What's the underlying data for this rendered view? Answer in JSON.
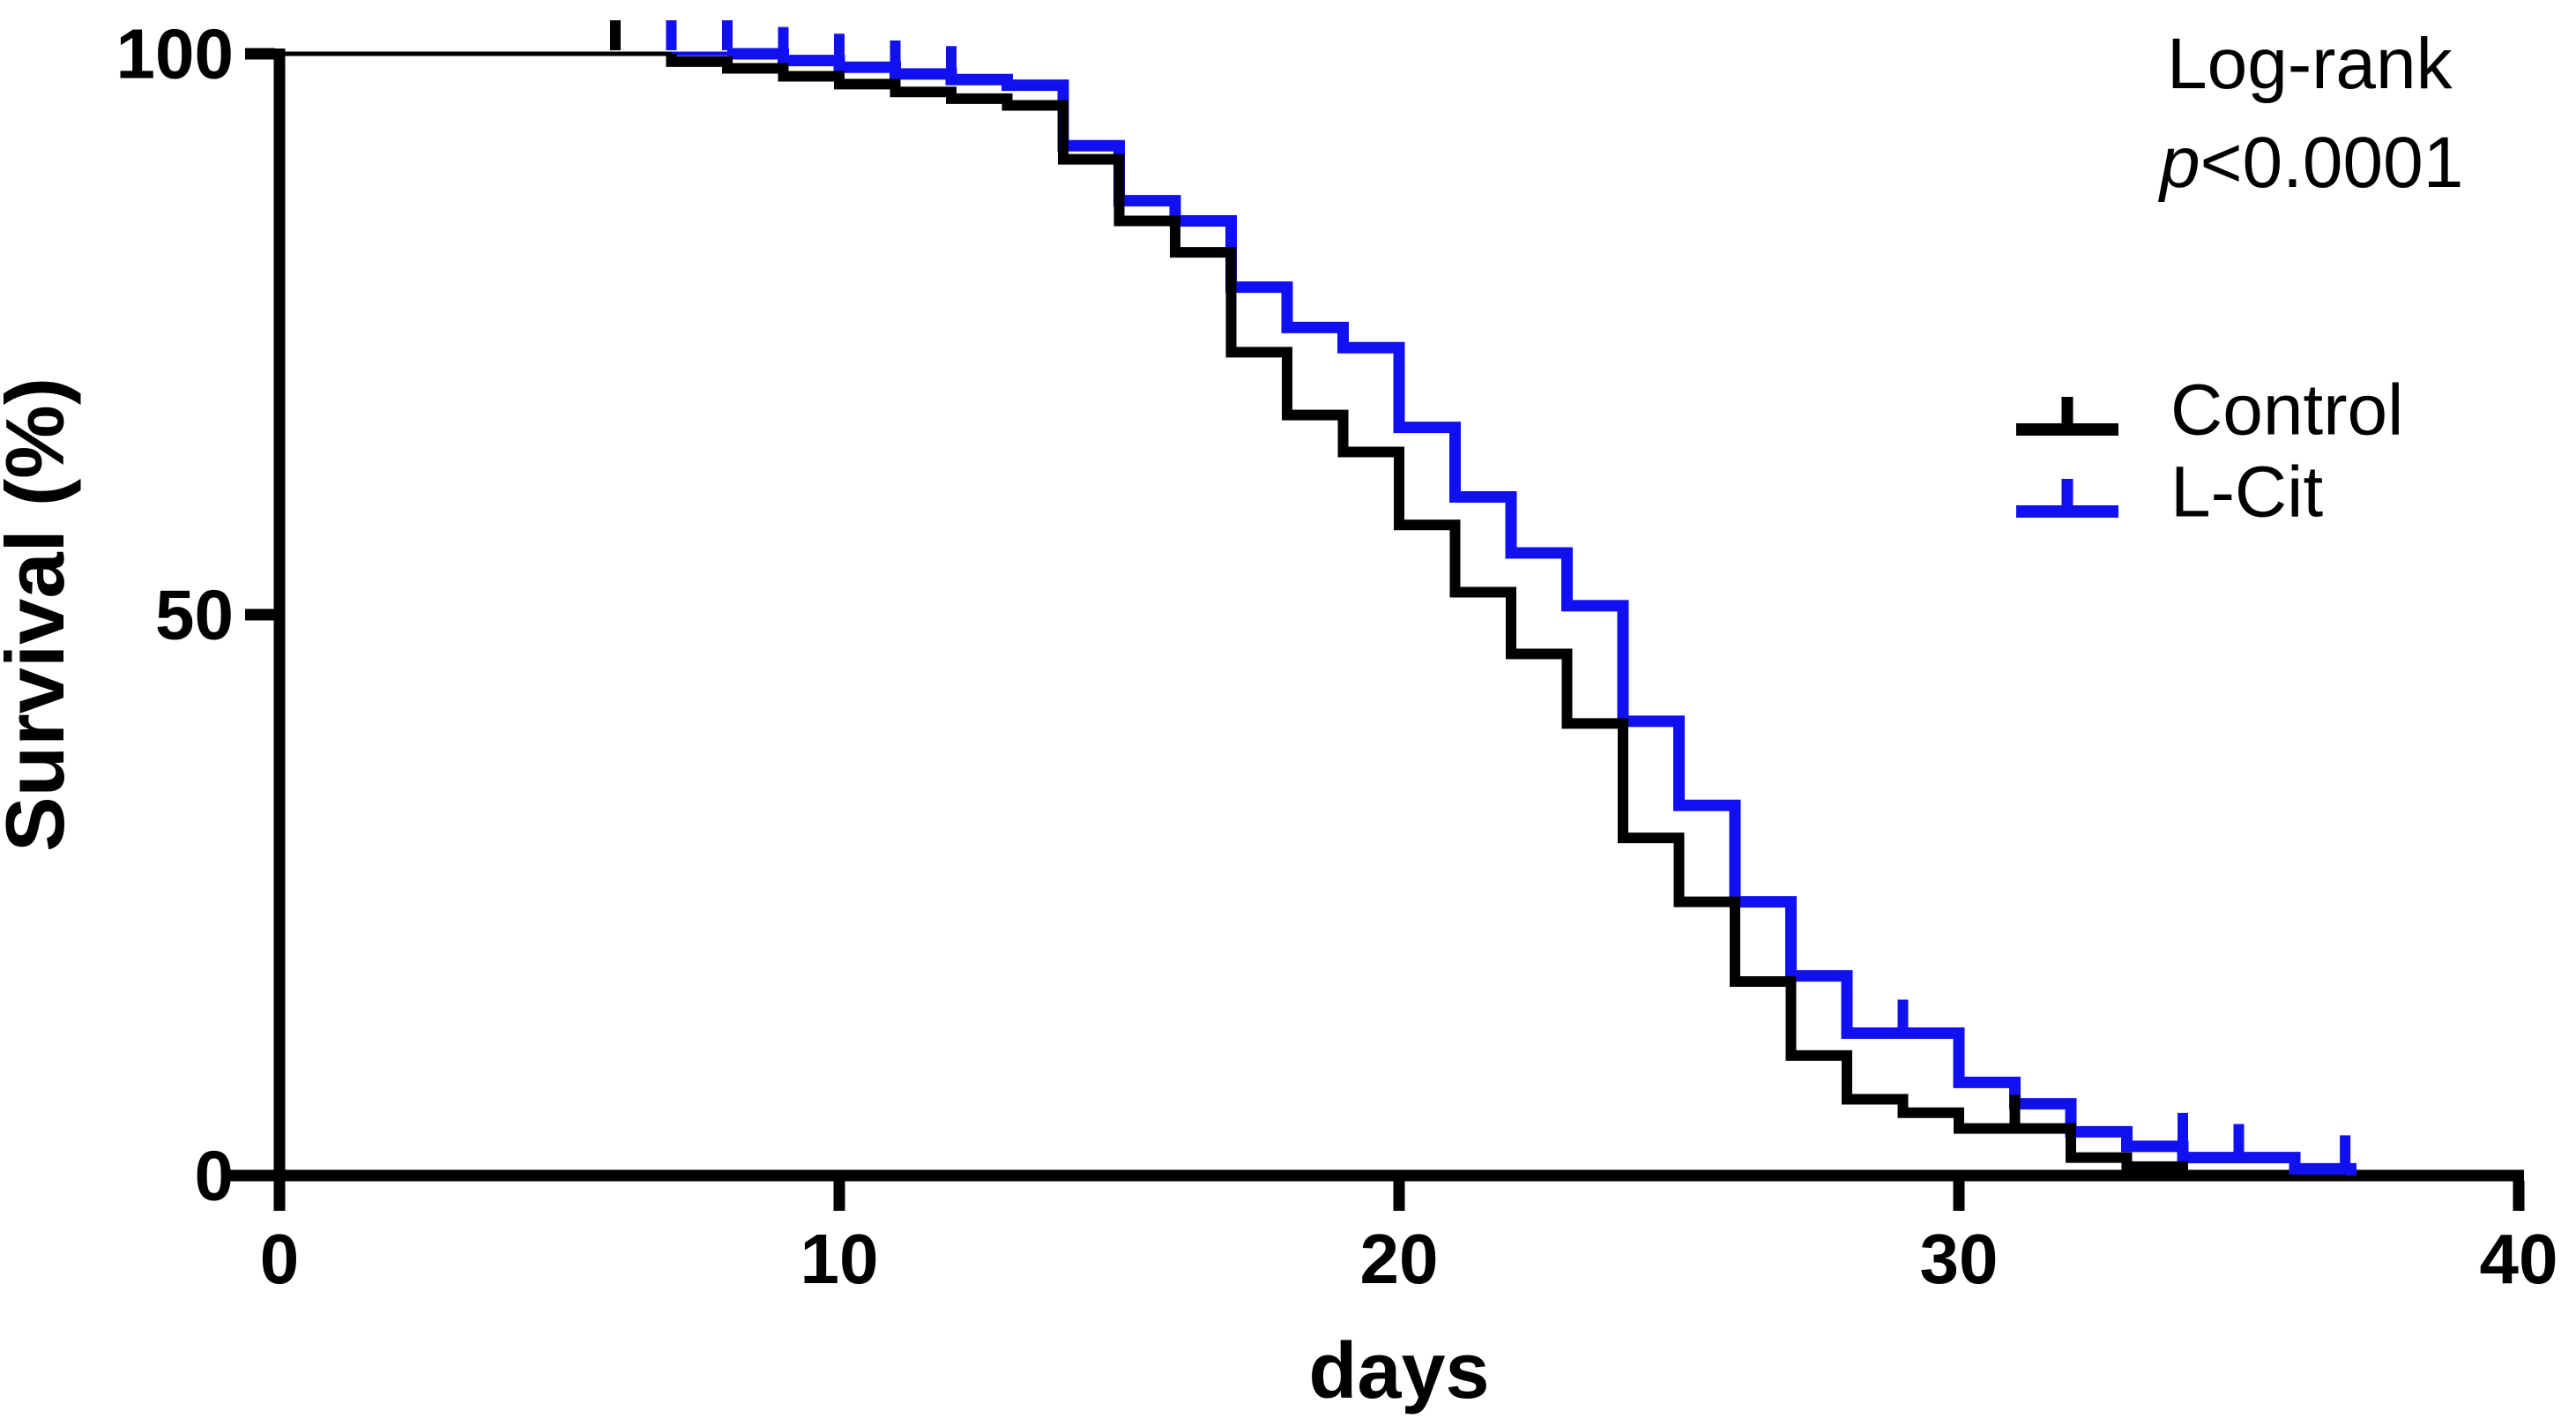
{
  "chart_data": {
    "type": "line",
    "subtype": "kaplan-meier-step-plot",
    "title": "",
    "xlabel": "days",
    "ylabel": "Survival (%)",
    "xlim": [
      0,
      40
    ],
    "ylim": [
      0,
      100
    ],
    "x_ticks": [
      0,
      10,
      20,
      30,
      40
    ],
    "y_ticks": [
      0,
      50,
      100
    ],
    "grid": false,
    "legend_position": "right-middle",
    "annotation": {
      "line1": "Log-rank",
      "p_italic": "p",
      "p_rest": "<0.0001"
    },
    "axis_color": "#000000",
    "background_color": "#ffffff",
    "series": [
      {
        "name": "Control",
        "color": "#000000",
        "line_width": 12,
        "start_level": 100,
        "thin_until_day": 7,
        "steps": [
          [
            7,
            99.3
          ],
          [
            8,
            98.7
          ],
          [
            9,
            98.0
          ],
          [
            10,
            97.3
          ],
          [
            11,
            96.6
          ],
          [
            12,
            96.0
          ],
          [
            13,
            95.4
          ],
          [
            14,
            90.6
          ],
          [
            15,
            85.1
          ],
          [
            16,
            82.3
          ],
          [
            17,
            73.4
          ],
          [
            18,
            67.8
          ],
          [
            19,
            64.5
          ],
          [
            20,
            58.0
          ],
          [
            21,
            52.0
          ],
          [
            22,
            46.5
          ],
          [
            23,
            40.3
          ],
          [
            24,
            30.1
          ],
          [
            25,
            24.4
          ],
          [
            26,
            17.3
          ],
          [
            27,
            10.7
          ],
          [
            28,
            6.8
          ],
          [
            29,
            5.6
          ],
          [
            30,
            4.2
          ],
          [
            32,
            1.6
          ],
          [
            33,
            0.8
          ],
          [
            34,
            0
          ]
        ],
        "end_day": 34,
        "censor_marks": [
          [
            6,
            100
          ],
          [
            31,
            4.2
          ]
        ]
      },
      {
        "name": "L-Cit",
        "color": "#1010F0",
        "line_width": 13,
        "start_level": 100,
        "thin_until_day": 8,
        "steps": [
          [
            9,
            99.4
          ],
          [
            10,
            98.8
          ],
          [
            11,
            98.2
          ],
          [
            12,
            97.7
          ],
          [
            13,
            97.2
          ],
          [
            14,
            91.8
          ],
          [
            15,
            86.9
          ],
          [
            16,
            85.1
          ],
          [
            17,
            79.2
          ],
          [
            18,
            75.6
          ],
          [
            19,
            73.8
          ],
          [
            20,
            66.7
          ],
          [
            21,
            60.5
          ],
          [
            22,
            55.5
          ],
          [
            23,
            50.8
          ],
          [
            24,
            40.5
          ],
          [
            25,
            33.0
          ],
          [
            26,
            24.4
          ],
          [
            27,
            17.8
          ],
          [
            28,
            12.7
          ],
          [
            30,
            8.3
          ],
          [
            31,
            6.4
          ],
          [
            32,
            3.9
          ],
          [
            33,
            2.6
          ],
          [
            34,
            1.6
          ],
          [
            36,
            0.6
          ],
          [
            37,
            0
          ]
        ],
        "end_day": 37,
        "censor_marks": [
          [
            7,
            100
          ],
          [
            8,
            100
          ],
          [
            9,
            99.4
          ],
          [
            10,
            98.8
          ],
          [
            11,
            98.2
          ],
          [
            12,
            97.7
          ],
          [
            29,
            12.7
          ],
          [
            34,
            2.6
          ],
          [
            35,
            1.6
          ],
          [
            36.9,
            0.6
          ]
        ]
      }
    ]
  }
}
